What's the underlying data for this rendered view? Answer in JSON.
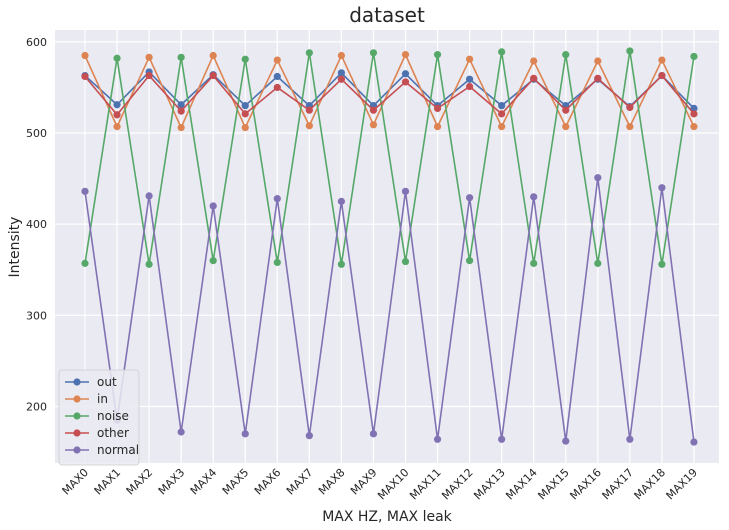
{
  "chart_data": {
    "type": "line",
    "title": "dataset",
    "xlabel": "MAX HZ, MAX leak",
    "ylabel": "Intensity",
    "categories": [
      "MAX0",
      "MAX1",
      "MAX2",
      "MAX3",
      "MAX4",
      "MAX5",
      "MAX6",
      "MAX7",
      "MAX8",
      "MAX9",
      "MAX10",
      "MAX11",
      "MAX12",
      "MAX13",
      "MAX14",
      "MAX15",
      "MAX16",
      "MAX17",
      "MAX18",
      "MAX19"
    ],
    "ylim": [
      138,
      613
    ],
    "yticks": [
      200,
      300,
      400,
      500,
      600
    ],
    "grid": true,
    "legend_position": "lower-left",
    "background": "#eaeaf2",
    "series": [
      {
        "name": "out",
        "color": "#4c72b0",
        "values": [
          563,
          531,
          567,
          531,
          564,
          530,
          562,
          530,
          566,
          530,
          565,
          530,
          559,
          530,
          559,
          530,
          559,
          529,
          563,
          527
        ]
      },
      {
        "name": "in",
        "color": "#dd8452",
        "values": [
          585,
          507,
          583,
          506,
          585,
          506,
          580,
          508,
          585,
          509,
          586,
          507,
          581,
          507,
          579,
          507,
          579,
          507,
          580,
          507
        ]
      },
      {
        "name": "noise",
        "color": "#55a868",
        "values": [
          357,
          582,
          356,
          583,
          360,
          581,
          358,
          588,
          356,
          588,
          359,
          586,
          360,
          589,
          357,
          586,
          357,
          590,
          356,
          584
        ]
      },
      {
        "name": "other",
        "color": "#c44e52",
        "values": [
          562,
          520,
          563,
          524,
          563,
          521,
          550,
          525,
          559,
          525,
          556,
          527,
          551,
          521,
          560,
          525,
          560,
          528,
          563,
          521
        ]
      },
      {
        "name": "normal",
        "color": "#8172b3",
        "values": [
          436,
          185,
          431,
          172,
          420,
          170,
          428,
          168,
          425,
          170,
          436,
          164,
          429,
          164,
          430,
          162,
          451,
          164,
          440,
          161
        ]
      }
    ]
  }
}
